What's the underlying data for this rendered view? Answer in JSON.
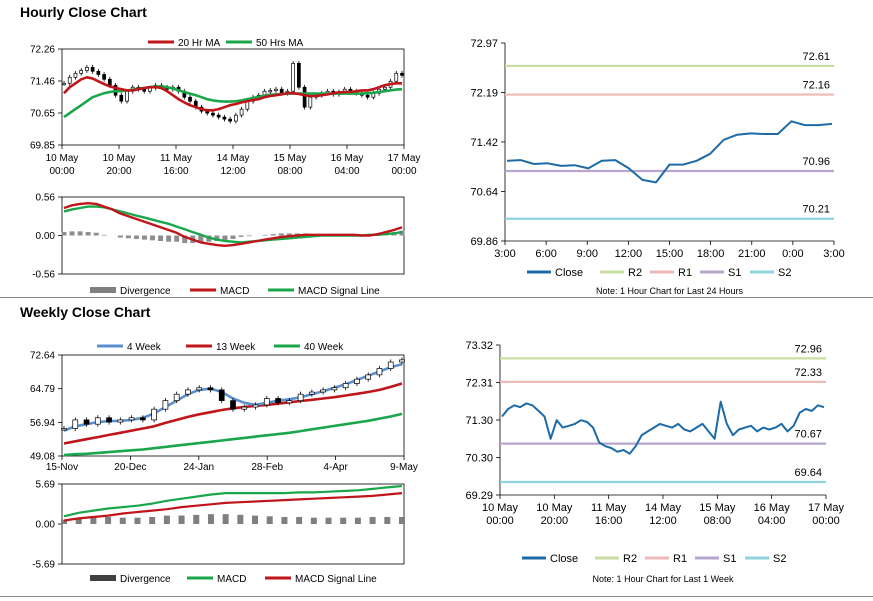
{
  "hourly_title": "Hourly Close Chart",
  "weekly_title": "Weekly Close Chart",
  "colors": {
    "red": "#c0151b",
    "green": "#1aa64a",
    "blue": "#2a6fb0",
    "gray": "#7f7f7f",
    "close": "#1c6ba8",
    "r2": "#c8dea0",
    "r1": "#ecb9b7",
    "s1": "#b6a6cc",
    "s2": "#8fd3df"
  },
  "chart_data": [
    {
      "id": "hourly_price",
      "type": "line",
      "title": "Hourly Close Chart",
      "legend": [
        "20 Hr MA",
        "50 Hrs MA"
      ],
      "yticks": [
        "72.26",
        "71.46",
        "70.65",
        "69.85"
      ],
      "ylim": [
        69.85,
        72.26
      ],
      "xticks": [
        [
          "10 May",
          "00:00"
        ],
        [
          "10 May",
          "20:00"
        ],
        [
          "11 May",
          "16:00"
        ],
        [
          "14 May",
          "12:00"
        ],
        [
          "15 May",
          "08:00"
        ],
        [
          "16 May",
          "04:00"
        ],
        [
          "17 May",
          "00:00"
        ]
      ],
      "candles": [
        71.4,
        71.55,
        71.65,
        71.72,
        71.8,
        71.7,
        71.62,
        71.5,
        71.35,
        71.1,
        70.95,
        71.2,
        71.3,
        71.25,
        71.2,
        71.28,
        71.35,
        71.3,
        71.25,
        71.3,
        71.2,
        71.05,
        70.95,
        70.8,
        70.7,
        70.65,
        70.6,
        70.55,
        70.5,
        70.45,
        70.6,
        70.75,
        70.95,
        71.05,
        71.1,
        71.2,
        71.22,
        71.25,
        71.15,
        71.2,
        71.9,
        71.3,
        70.8,
        71.05,
        71.1,
        71.15,
        71.2,
        71.12,
        71.18,
        71.25,
        71.2,
        71.15,
        71.1,
        71.05,
        71.15,
        71.25,
        71.3,
        71.45,
        71.65,
        71.6
      ],
      "series": [
        {
          "name": "20 Hr MA",
          "values": [
            71.15,
            71.3,
            71.4,
            71.5,
            71.55,
            71.52,
            71.45,
            71.38,
            71.32,
            71.28,
            71.25,
            71.22,
            71.22,
            71.25,
            71.28,
            71.3,
            71.3,
            71.28,
            71.2,
            71.1,
            71.0,
            70.92,
            70.85,
            70.8,
            70.75,
            70.72,
            70.72,
            70.75,
            70.8,
            70.85,
            70.88,
            70.92,
            70.95,
            70.98,
            71.0,
            71.05,
            71.08,
            71.1,
            71.12,
            71.15,
            71.15,
            71.13,
            71.1,
            71.08,
            71.08,
            71.1,
            71.12,
            71.15,
            71.17,
            71.18,
            71.18,
            71.2,
            71.22,
            71.22,
            71.25,
            71.3,
            71.35,
            71.38,
            71.4,
            71.4
          ]
        },
        {
          "name": "50 Hrs MA",
          "values": [
            70.55,
            70.65,
            70.75,
            70.85,
            70.95,
            71.05,
            71.1,
            71.15,
            71.18,
            71.2,
            71.2,
            71.22,
            71.24,
            71.26,
            71.28,
            71.3,
            71.32,
            71.32,
            71.3,
            71.27,
            71.22,
            71.18,
            71.14,
            71.1,
            71.05,
            71.0,
            70.97,
            70.95,
            70.94,
            70.94,
            70.95,
            70.97,
            71.0,
            71.03,
            71.06,
            71.09,
            71.11,
            71.12,
            71.13,
            71.14,
            71.14,
            71.14,
            71.14,
            71.14,
            71.14,
            71.14,
            71.14,
            71.14,
            71.14,
            71.14,
            71.14,
            71.14,
            71.14,
            71.15,
            71.16,
            71.18,
            71.2,
            71.22,
            71.24,
            71.25
          ]
        }
      ]
    },
    {
      "id": "hourly_macd",
      "type": "line",
      "legend": [
        "Divergence",
        "MACD",
        "MACD Signal Line"
      ],
      "yticks": [
        "0.56",
        "0.00",
        "-0.56"
      ],
      "ylim": [
        -0.56,
        0.56
      ],
      "series": [
        {
          "name": "MACD",
          "values": [
            0.4,
            0.44,
            0.46,
            0.47,
            0.46,
            0.42,
            0.38,
            0.32,
            0.28,
            0.24,
            0.2,
            0.16,
            0.12,
            0.08,
            0.04,
            -0.02,
            -0.06,
            -0.1,
            -0.12,
            -0.14,
            -0.15,
            -0.14,
            -0.12,
            -0.1,
            -0.08,
            -0.06,
            -0.04,
            -0.02,
            -0.01,
            0.0,
            0.01,
            0.01,
            0.01,
            0.01,
            0.01,
            0.01,
            0.01,
            0.0,
            0.0,
            0.02,
            0.05,
            0.08,
            0.12
          ]
        },
        {
          "name": "MACD Signal Line",
          "values": [
            0.35,
            0.38,
            0.4,
            0.42,
            0.42,
            0.41,
            0.38,
            0.35,
            0.32,
            0.29,
            0.26,
            0.23,
            0.2,
            0.17,
            0.13,
            0.09,
            0.05,
            0.01,
            -0.03,
            -0.06,
            -0.08,
            -0.09,
            -0.1,
            -0.09,
            -0.08,
            -0.07,
            -0.06,
            -0.05,
            -0.04,
            -0.03,
            -0.02,
            -0.01,
            0.0,
            0.0,
            0.0,
            0.0,
            0.0,
            0.0,
            0.01,
            0.01,
            0.02,
            0.03,
            0.05
          ]
        },
        {
          "name": "Divergence",
          "values": [
            0.05,
            0.06,
            0.06,
            0.05,
            0.04,
            0.01,
            0.0,
            -0.03,
            -0.04,
            -0.05,
            -0.06,
            -0.07,
            -0.08,
            -0.09,
            -0.09,
            -0.11,
            -0.11,
            -0.11,
            -0.09,
            -0.08,
            -0.07,
            -0.05,
            -0.02,
            -0.01,
            0.0,
            0.01,
            0.02,
            0.03,
            0.03,
            0.03,
            0.03,
            0.02,
            0.01,
            0.01,
            0.01,
            0.01,
            0.01,
            0.0,
            -0.01,
            0.01,
            0.03,
            0.05,
            0.07
          ]
        }
      ]
    },
    {
      "id": "hourly_24h",
      "type": "line",
      "note": "Note: 1 Hour Chart for Last 24 Hours",
      "yticks": [
        "72.97",
        "72.19",
        "71.42",
        "70.64",
        "69.86"
      ],
      "ylim": [
        69.86,
        72.97
      ],
      "xticks": [
        "3:00",
        "6:00",
        "9:00",
        "12:00",
        "15:00",
        "18:00",
        "21:00",
        "0:00",
        "3:00"
      ],
      "levels": [
        {
          "name": "R2",
          "value": 72.61,
          "label": "72.61"
        },
        {
          "name": "R1",
          "value": 72.16,
          "label": "72.16"
        },
        {
          "name": "S1",
          "value": 70.96,
          "label": "70.96"
        },
        {
          "name": "S2",
          "value": 70.21,
          "label": "70.21"
        }
      ],
      "legend": [
        "Close",
        "R2",
        "R1",
        "S1",
        "S2"
      ],
      "series": [
        {
          "name": "Close",
          "values": [
            71.12,
            71.13,
            71.07,
            71.08,
            71.04,
            71.05,
            71.0,
            71.12,
            71.13,
            71.0,
            70.82,
            70.78,
            71.06,
            71.06,
            71.12,
            71.23,
            71.45,
            71.53,
            71.55,
            71.54,
            71.54,
            71.74,
            71.68,
            71.68,
            71.7
          ]
        }
      ]
    },
    {
      "id": "weekly_price",
      "type": "line",
      "title": "Weekly Close Chart",
      "legend": [
        "4 Week",
        "13 Week",
        "40 Week"
      ],
      "yticks": [
        "72.64",
        "64.79",
        "56.94",
        "49.08"
      ],
      "ylim": [
        49.08,
        72.64
      ],
      "xticks": [
        "15-Nov",
        "20-Dec",
        "24-Jan",
        "28-Feb",
        "4-Apr",
        "9-May"
      ],
      "candles": [
        55.5,
        57.5,
        56.5,
        58.0,
        57.0,
        57.5,
        58.0,
        57.5,
        60.0,
        62.0,
        63.5,
        64.5,
        65.0,
        64.5,
        62.0,
        60.0,
        60.5,
        61.0,
        62.5,
        61.5,
        62.0,
        63.5,
        64.0,
        64.5,
        65.0,
        66.0,
        67.0,
        68.0,
        69.5,
        71.0,
        71.5
      ],
      "series": [
        {
          "name": "4 Week",
          "values": [
            55.0,
            56.0,
            56.5,
            57.0,
            57.2,
            57.3,
            57.5,
            58.0,
            59.0,
            60.5,
            62.0,
            63.5,
            64.5,
            64.8,
            64.0,
            62.5,
            61.5,
            61.0,
            61.5,
            62.0,
            62.3,
            62.8,
            63.5,
            64.2,
            65.0,
            65.8,
            66.8,
            67.8,
            68.8,
            69.8,
            70.5
          ]
        },
        {
          "name": "13 Week",
          "values": [
            52.0,
            52.5,
            53.0,
            53.5,
            54.0,
            54.5,
            55.0,
            55.5,
            56.0,
            56.8,
            57.5,
            58.2,
            58.8,
            59.3,
            59.8,
            60.2,
            60.5,
            60.8,
            61.0,
            61.3,
            61.6,
            61.9,
            62.2,
            62.5,
            62.8,
            63.2,
            63.6,
            64.0,
            64.5,
            65.2,
            66.0
          ]
        },
        {
          "name": "40 Week",
          "values": [
            49.3,
            49.5,
            49.6,
            49.8,
            50.0,
            50.2,
            50.4,
            50.6,
            50.9,
            51.2,
            51.5,
            51.8,
            52.1,
            52.4,
            52.7,
            53.0,
            53.3,
            53.6,
            53.9,
            54.2,
            54.5,
            54.9,
            55.3,
            55.7,
            56.1,
            56.5,
            56.9,
            57.3,
            57.8,
            58.3,
            58.9
          ]
        }
      ]
    },
    {
      "id": "weekly_macd",
      "type": "line",
      "legend": [
        "Divergence",
        "MACD",
        "MACD Signal Line"
      ],
      "yticks": [
        "5.69",
        "0.00",
        "-5.69"
      ],
      "ylim": [
        -5.69,
        5.69
      ],
      "series": [
        {
          "name": "MACD",
          "values": [
            1.1,
            1.6,
            1.9,
            2.2,
            2.4,
            2.6,
            2.9,
            3.3,
            3.6,
            3.9,
            4.2,
            4.4,
            4.4,
            4.4,
            4.4,
            4.4,
            4.5,
            4.5,
            4.6,
            4.7,
            4.8,
            5.0,
            5.2,
            5.4
          ]
        },
        {
          "name": "MACD Signal Line",
          "values": [
            0.5,
            0.8,
            1.0,
            1.2,
            1.5,
            1.7,
            1.9,
            2.1,
            2.4,
            2.6,
            2.8,
            3.0,
            3.1,
            3.2,
            3.3,
            3.4,
            3.5,
            3.6,
            3.7,
            3.8,
            3.9,
            4.0,
            4.2,
            4.4
          ]
        },
        {
          "name": "Divergence",
          "values": [
            0.6,
            0.8,
            0.9,
            1.0,
            0.9,
            0.9,
            1.0,
            1.2,
            1.2,
            1.3,
            1.4,
            1.4,
            1.3,
            1.2,
            1.1,
            1.0,
            1.0,
            0.9,
            0.9,
            0.9,
            0.9,
            1.0,
            1.0,
            1.0
          ]
        }
      ]
    },
    {
      "id": "weekly_1w",
      "type": "line",
      "note": "Note: 1 Hour Chart for Last 1 Week",
      "yticks": [
        "73.32",
        "72.31",
        "71.30",
        "70.30",
        "69.29"
      ],
      "ylim": [
        69.29,
        73.32
      ],
      "xticks": [
        [
          "10 May",
          "00:00"
        ],
        [
          "10 May",
          "20:00"
        ],
        [
          "11 May",
          "16:00"
        ],
        [
          "14 May",
          "12:00"
        ],
        [
          "15 May",
          "08:00"
        ],
        [
          "16 May",
          "04:00"
        ],
        [
          "17 May",
          "00:00"
        ]
      ],
      "levels": [
        {
          "name": "R2",
          "value": 72.96,
          "label": "72.96"
        },
        {
          "name": "R1",
          "value": 72.33,
          "label": "72.33"
        },
        {
          "name": "S1",
          "value": 70.67,
          "label": "70.67"
        },
        {
          "name": "S2",
          "value": 69.64,
          "label": "69.64"
        }
      ],
      "legend": [
        "Close",
        "R2",
        "R1",
        "S1",
        "S2"
      ],
      "series": [
        {
          "name": "Close",
          "values": [
            71.4,
            71.6,
            71.7,
            71.65,
            71.75,
            71.7,
            71.55,
            71.4,
            70.8,
            71.3,
            71.1,
            71.15,
            71.2,
            71.3,
            71.25,
            71.1,
            70.7,
            70.6,
            70.55,
            70.45,
            70.5,
            70.4,
            70.6,
            70.9,
            71.0,
            71.1,
            71.2,
            71.15,
            71.1,
            71.2,
            71.05,
            71.0,
            71.1,
            71.2,
            71.0,
            70.8,
            71.8,
            71.2,
            70.9,
            71.05,
            71.1,
            71.15,
            71.0,
            71.1,
            71.05,
            71.1,
            71.2,
            71.0,
            71.15,
            71.5,
            71.6,
            71.55,
            71.7,
            71.65
          ]
        }
      ]
    }
  ]
}
